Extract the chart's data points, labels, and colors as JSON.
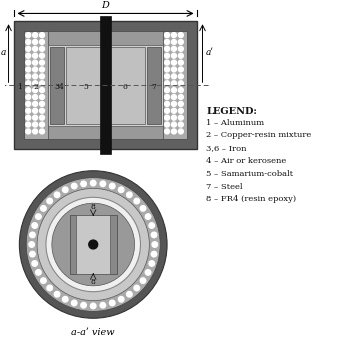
{
  "bg_color": "#ffffff",
  "colors": {
    "dark_gray": "#555555",
    "med_gray": "#888888",
    "light_gray": "#bbbbbb",
    "lighter_gray": "#d0d0d0",
    "very_light_gray": "#e5e5e5",
    "black": "#111111",
    "white": "#ffffff",
    "dot_bg": "#aaaaaa",
    "outer_frame": "#555555",
    "inner_frame": "#888888"
  },
  "legend": {
    "title": "LEGEND:",
    "items": [
      "1 – Aluminum",
      "2 – Copper-resin mixture",
      "3,6 – Iron",
      "4 – Air or kerosene",
      "5 – Samarium-cobalt",
      "7 – Steel",
      "8 – FR4 (resin epoxy)"
    ]
  },
  "bottom_label": "a-aʹ view",
  "dim_label_D": "D",
  "dim_label_a": "a",
  "dim_label_aprime": "aʹ"
}
